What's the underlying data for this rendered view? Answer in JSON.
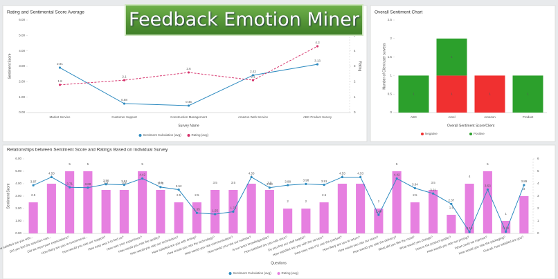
{
  "header": {
    "title": "Feedback Emotion Miner"
  },
  "chart_data": [
    {
      "type": "line",
      "title": "Rating and Sentimental Score Average",
      "xlabel": "Survey Name",
      "ylabel": "Sentiment Score",
      "y2label": "Rating",
      "categories": [
        "Market Service",
        "Customer Support",
        "Construction Management",
        "Amazon Web Service",
        "ABC Product Survey"
      ],
      "ylim": [
        0,
        6
      ],
      "yticks": [
        {
          "value": 0,
          "label": "0.00"
        },
        {
          "value": 1,
          "label": "1.00"
        },
        {
          "value": 2,
          "label": "2.00"
        },
        {
          "value": 3,
          "label": "3.00"
        },
        {
          "value": 4,
          "label": "4.00"
        },
        {
          "value": 5,
          "label": "5.00"
        },
        {
          "value": 6,
          "label": "6.00"
        }
      ],
      "y2lim": [
        0,
        6
      ],
      "y2ticks": [
        0,
        1,
        2,
        3,
        4,
        5,
        6
      ],
      "series": [
        {
          "name": "Sentiment Calculation (avg)",
          "color": "#2e8bc0",
          "values": [
            2.91,
            0.58,
            0.45,
            2.42,
            3.13
          ]
        },
        {
          "name": "Rating (avg)",
          "color": "#d6336c",
          "dashed": true,
          "axis": "y2",
          "values": [
            1.8,
            2.1,
            2.6,
            2.1,
            4.3
          ]
        }
      ]
    },
    {
      "type": "stacked_bar",
      "title": "Overall Sentiment Chart",
      "xlabel": "Overall Sentiment Score/Client",
      "ylabel": "Number of Client user surveys",
      "categories": [
        "ABC",
        "Amel",
        "Amazon",
        "Product"
      ],
      "ylim": [
        0,
        2.5
      ],
      "yticks": [
        0,
        0.5,
        1,
        1.5,
        2,
        2.5
      ],
      "series": [
        {
          "name": "Negative",
          "color": "#f03030",
          "values": [
            0,
            1,
            1,
            0
          ]
        },
        {
          "name": "Positive",
          "color": "#2ca02c",
          "values": [
            1,
            1,
            0,
            1
          ]
        }
      ]
    },
    {
      "type": "bar_line",
      "title": "Relationships between Sentiment Score and Ratings Based on Individual Survey",
      "xlabel": "Questions",
      "ylabel": "Sentiment Score",
      "categories": [
        "How satisfied are you with...",
        "Did you feel the selection was...",
        "Did we meet your expectations?",
        "How likely are you to recommend...",
        "How would you rate our support?",
        "How easy was it to find us?",
        "How was your experience?",
        "How would you rate the quality?",
        "How would you rate our technicians?",
        "How satisfied are you with timing?",
        "How would you rate the technology?",
        "How would you rate communication?",
        "How would you rate our website?",
        "Is our team knowledgeable?",
        "How satisfied are you with price?",
        "Do you find our staff helpful?",
        "How satisfied are you with the service?",
        "How easy was it to use the product?",
        "How likely are you to return?",
        "How would you rate our team?",
        "How would you rate the delivery?",
        "What did you like the most?",
        "What would you change?",
        "How is the product quality?",
        "How would you rate our pricing?",
        "What could we improve?",
        "How would you rate the packaging?",
        "Overall, how satisfied are you?"
      ],
      "ylim": [
        0,
        6
      ],
      "yticks": [
        {
          "value": 0,
          "label": "0.00"
        },
        {
          "value": 1,
          "label": "1.00"
        },
        {
          "value": 2,
          "label": "2.00"
        },
        {
          "value": 3,
          "label": "3.00"
        },
        {
          "value": 4,
          "label": "4.00"
        },
        {
          "value": 5,
          "label": "5.00"
        },
        {
          "value": 6,
          "label": "6.00"
        }
      ],
      "y2lim": [
        0,
        6
      ],
      "y2ticks": [
        0,
        1,
        2,
        3,
        4,
        5,
        6
      ],
      "series": [
        {
          "name": "Sentiment Calculation (avg)",
          "type": "line",
          "color": "#2e8bc0",
          "values": [
            3.87,
            4.53,
            3.71,
            3.68,
            3.96,
            3.91,
            4.42,
            3.73,
            3.52,
            1.65,
            1.55,
            1.75,
            4.53,
            3.68,
            3.88,
            3.98,
            3.91,
            4.53,
            4.53,
            1.49,
            4.42,
            3.64,
            3.21,
            2.37,
            0.12,
            3.53,
            0.14,
            3.89
          ]
        },
        {
          "name": "Rating (avg)",
          "type": "bar",
          "axis": "y2",
          "color": "#e680e0",
          "values": [
            2.5,
            4,
            5,
            5,
            3.5,
            3.5,
            5,
            3.5,
            2.5,
            2.5,
            3.5,
            3.5,
            4,
            3.5,
            2,
            2,
            2.5,
            4,
            4,
            2,
            5,
            2.5,
            3.5,
            1.5,
            4,
            5,
            1,
            3
          ]
        }
      ]
    }
  ]
}
